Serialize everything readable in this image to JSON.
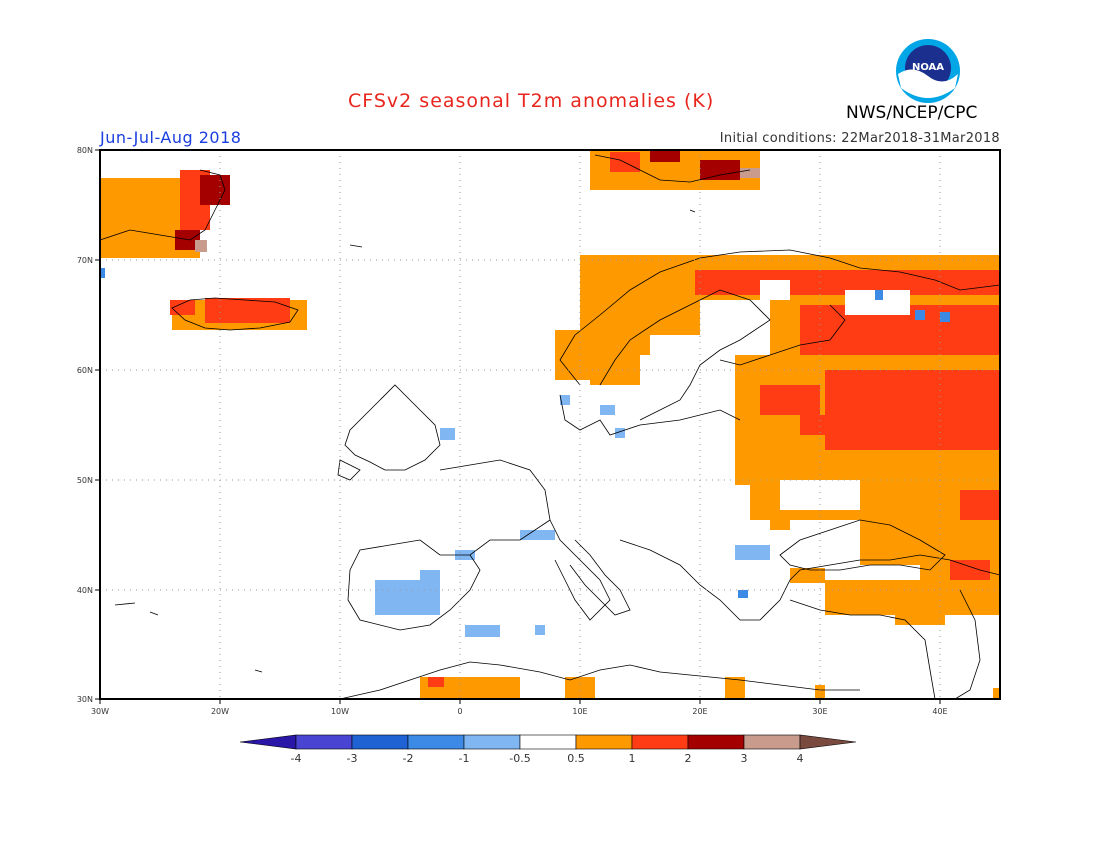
{
  "header": {
    "title": "CFSv2 seasonal T2m anomalies (K)",
    "period": "Jun-Jul-Aug 2018",
    "initial_conditions": "Initial conditions: 22Mar2018-31Mar2018",
    "agency": "NWS/NCEP/CPC",
    "logo_text": "NOAA"
  },
  "axes": {
    "lat_labels": [
      "80N",
      "70N",
      "60N",
      "50N",
      "40N",
      "30N"
    ],
    "lon_labels": [
      "30W",
      "20W",
      "10W",
      "0",
      "10E",
      "20E",
      "30E",
      "40E"
    ]
  },
  "colorbar": {
    "labels": [
      "-4",
      "-3",
      "-2",
      "-1",
      "-0.5",
      "0.5",
      "1",
      "2",
      "3",
      "4"
    ],
    "colors": [
      "#2a17a8",
      "#4a44d2",
      "#1f62d4",
      "#3d8ae6",
      "#80b6f2",
      "#ffffff",
      "#ff9900",
      "#ff3c14",
      "#a50000",
      "#c89b8c",
      "#7a4a3e"
    ]
  },
  "anomaly_colors": {
    "light_blue": "#80b6f2",
    "mid_blue": "#3d8ae6",
    "orange": "#ff9900",
    "red": "#ff3c14",
    "dark_red": "#a50000",
    "brown": "#c89b8c"
  }
}
